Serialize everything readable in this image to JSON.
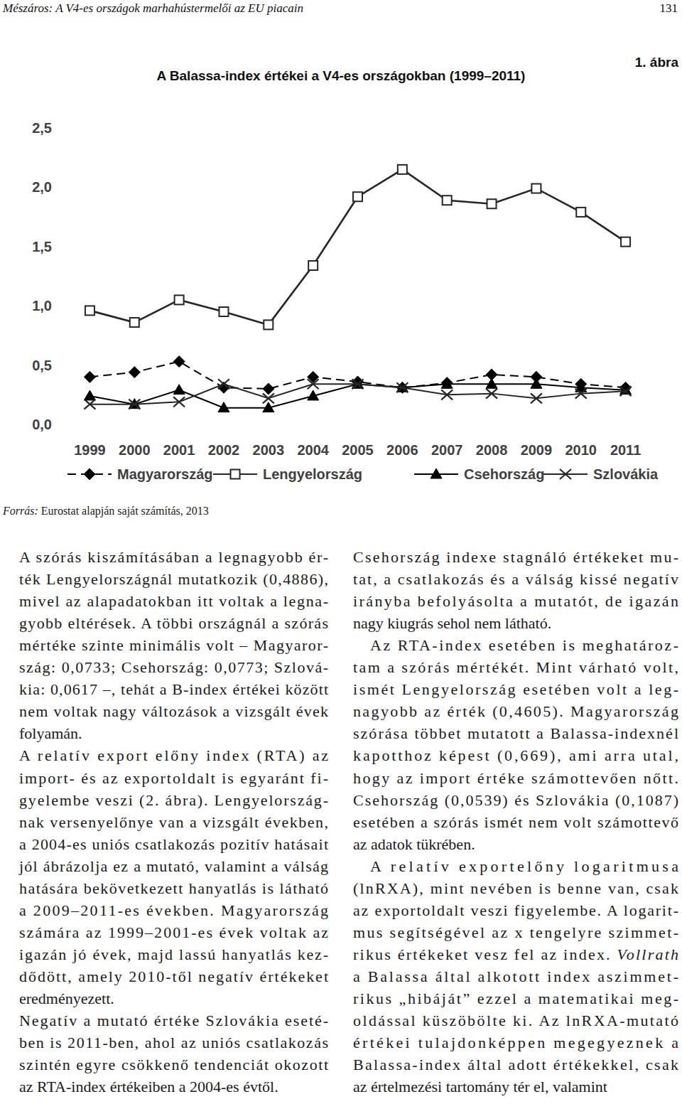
{
  "header": {
    "running_title": "Mészáros: A V4-es országok marhahústermelői az EU piacain",
    "page_number": "131"
  },
  "figure": {
    "label": "1. ábra",
    "source": {
      "label": "Forrás:",
      "text": "Eurostat alapján saját számítás, 2013"
    }
  },
  "chart_data": {
    "type": "line",
    "title": "A Balassa-index értékei a V4-es országokban (1999–2011)",
    "categories": [
      "1999",
      "2000",
      "2001",
      "2002",
      "2003",
      "2004",
      "2005",
      "2006",
      "2007",
      "2008",
      "2009",
      "2010",
      "2011"
    ],
    "series": [
      {
        "name": "Magyarország",
        "color": "#000000",
        "marker": "diamond",
        "line_style": "dashed",
        "values": [
          0.4,
          0.44,
          0.53,
          0.31,
          0.3,
          0.4,
          0.36,
          0.31,
          0.35,
          0.42,
          0.4,
          0.34,
          0.31
        ]
      },
      {
        "name": "Lengyelország",
        "color": "#262626",
        "marker": "square",
        "line_style": "solid",
        "values": [
          0.96,
          0.86,
          1.05,
          0.95,
          0.84,
          1.34,
          1.92,
          2.15,
          1.89,
          1.86,
          1.99,
          1.79,
          1.54
        ]
      },
      {
        "name": "Csehország",
        "color": "#000000",
        "marker": "triangle",
        "line_style": "solid",
        "values": [
          0.24,
          0.17,
          0.29,
          0.14,
          0.14,
          0.24,
          0.34,
          0.31,
          0.34,
          0.34,
          0.34,
          0.31,
          0.29
        ]
      },
      {
        "name": "Szlovákia",
        "color": "#262626",
        "marker": "x",
        "line_style": "solid",
        "values": [
          0.17,
          0.17,
          0.19,
          0.34,
          0.22,
          0.34,
          0.34,
          0.31,
          0.25,
          0.26,
          0.22,
          0.26,
          0.28
        ]
      }
    ],
    "ylim": [
      0,
      2.5
    ],
    "yticks": [
      {
        "value": 0,
        "label": "0,0"
      },
      {
        "value": 0.5,
        "label": "0,5"
      },
      {
        "value": 1,
        "label": "1,0"
      },
      {
        "value": 1.5,
        "label": "1,5"
      },
      {
        "value": 2,
        "label": "2,0"
      },
      {
        "value": 2.5,
        "label": "2,5"
      }
    ],
    "grid": false,
    "legend": "bottom"
  },
  "columns": [
    [
      {
        "indent": false,
        "lines": [
          "A szórás kiszámításában a legnagyobb ér-",
          "ték Lengyelországnál mutatkozik (0,4886),",
          "mivel az alapadatokban itt voltak a legna-",
          "gyobb eltérések. A többi országnál a szórás",
          "mértéke szinte minimális volt – Magyaror-",
          "szág: 0,0733; Csehország: 0,0773; Szlová-",
          "kia: 0,0617 –, tehát a B-index értékei között",
          "nem voltak nagy változások a vizsgált évek",
          "folyamán."
        ]
      },
      {
        "indent": false,
        "lines": [
          "A relatív export előny index (RTA) az",
          "import- és az exportoldalt is egyaránt fi-",
          "gyelembe veszi (2. ábra). Lengyelország-",
          "nak versenyelőnye van a vizsgált években,",
          "a 2004-es uniós csatlakozás pozitív hatásait",
          "jól ábrázolja ez a mutató, valamint a válság",
          "hatására bekövetkezett hanyatlás is látható",
          "a 2009–2011-es években. Magyarország",
          "számára az 1999–2001-es évek voltak az",
          "igazán jó évek, majd lassú hanyatlás kez-",
          "dődött, amely 2010-től negatív értékeket",
          "eredményezett."
        ]
      },
      {
        "indent": false,
        "lines": [
          "Negatív a mutató értéke Szlovákia eseté-",
          "ben is 2011-ben, ahol az uniós csatlakozás",
          "szintén egyre csökkenő tendenciát okozott",
          "az RTA-index értékeiben a 2004-es évtől."
        ]
      }
    ],
    [
      {
        "indent": false,
        "lines": [
          "Csehország indexe stagnáló értékeket mu-",
          "tat, a csatlakozás és a válság kissé negatív",
          "irányba befolyásolta a mutatót, de igazán",
          "nagy kiugrás sehol nem látható."
        ]
      },
      {
        "indent": true,
        "lines": [
          "Az RTA-index esetében is meghatároz-",
          "tam a szórás mértékét. Mint várható volt,",
          "ismét Lengyelország esetében volt a leg-",
          "nagyobb az érték (0,4605). Magyarország",
          "szórása többet mutatott a Balassa-indexnél",
          "kapotthoz képest (0,669), ami arra utal,",
          "hogy az import értéke számottevően nőtt.",
          "Csehország (0,0539) és Szlovákia (0,1087)",
          "esetében a szórás ismét nem volt számottevő",
          "az adatok tükrében."
        ]
      },
      {
        "indent": true,
        "lines": [
          "A relatív exportelőny logaritmusa",
          "(lnRXA), mint nevében is benne van, csak",
          "az exportoldalt veszi figyelembe. A logarit-",
          "mus segítségével az x tengelyre szimmet-",
          [
            "rikus értékeket vesz fel az index. ",
            "Vollrath"
          ],
          "a Balassa által alkotott index aszimmet-",
          "rikus „hibáját” ezzel a matematikai meg-",
          "oldással küszöbölte ki. Az lnRXA-mutató",
          "értékei tulajdonképpen megegyeznek a",
          "Balassa-index által adott értékekkel, csak",
          "az értelmezési tartomány tér el, valamint"
        ]
      }
    ]
  ]
}
